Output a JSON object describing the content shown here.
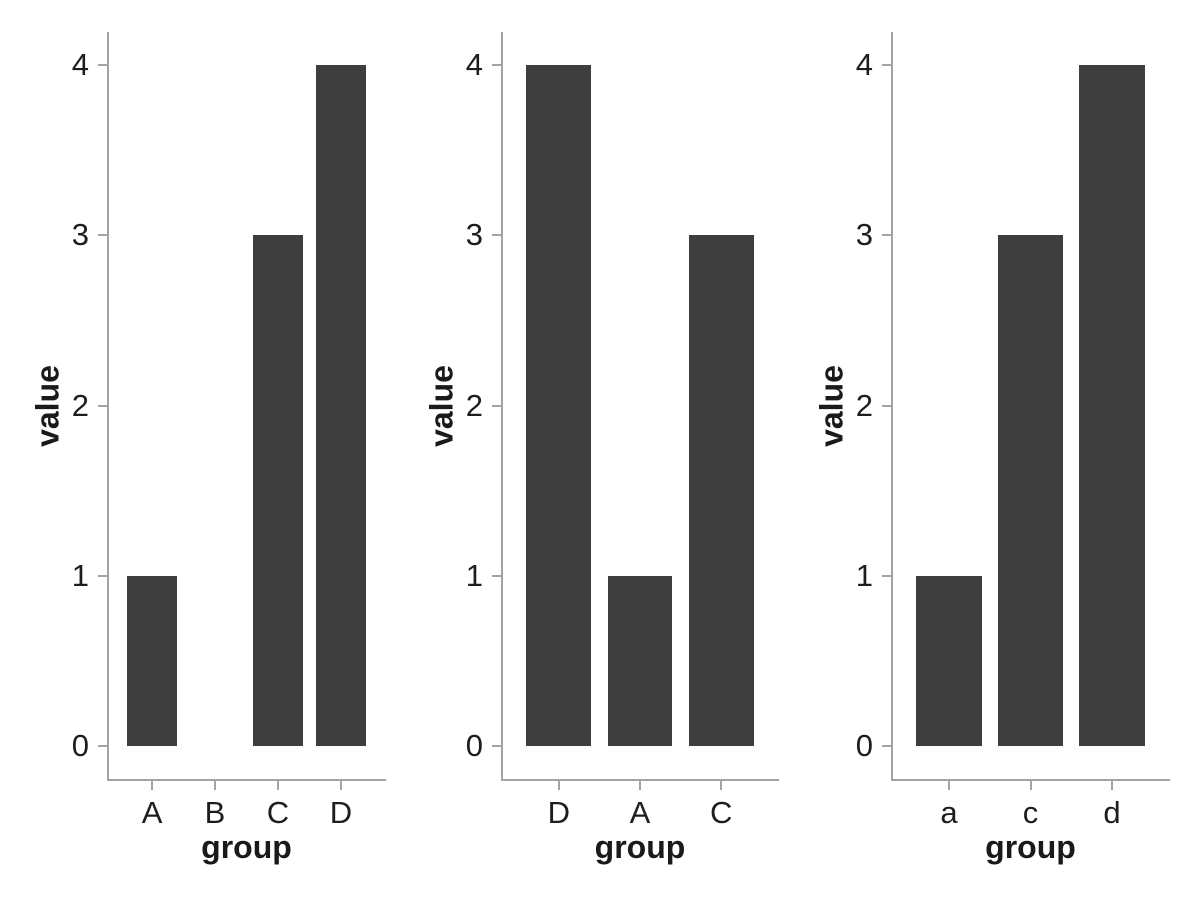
{
  "figure": {
    "background": "#ffffff",
    "colors": {
      "bar_fill": "#3e3e3e",
      "axis_line": "#a3a3a3",
      "tick_text": "#1d1d1d",
      "title_text": "#1a1a1a"
    }
  },
  "chart_data": [
    {
      "type": "bar",
      "title": "",
      "categories": [
        "A",
        "B",
        "C",
        "D"
      ],
      "values": [
        1,
        0,
        3,
        4
      ],
      "xlabel": "group",
      "ylabel": "value",
      "ylim": [
        0,
        4
      ],
      "yticks": [
        "0",
        "1",
        "2",
        "3",
        "4"
      ],
      "grid": false,
      "legend": false,
      "bar_color": "#3e3e3e"
    },
    {
      "type": "bar",
      "title": "",
      "categories": [
        "D",
        "A",
        "C"
      ],
      "values": [
        4,
        1,
        3
      ],
      "xlabel": "group",
      "ylabel": "value",
      "ylim": [
        0,
        4
      ],
      "yticks": [
        "0",
        "1",
        "2",
        "3",
        "4"
      ],
      "grid": false,
      "legend": false,
      "bar_color": "#3e3e3e"
    },
    {
      "type": "bar",
      "title": "",
      "categories": [
        "a",
        "c",
        "d"
      ],
      "values": [
        1,
        3,
        4
      ],
      "xlabel": "group",
      "ylabel": "value",
      "ylim": [
        0,
        4
      ],
      "yticks": [
        "0",
        "1",
        "2",
        "3",
        "4"
      ],
      "grid": false,
      "legend": false,
      "bar_color": "#3e3e3e"
    }
  ]
}
